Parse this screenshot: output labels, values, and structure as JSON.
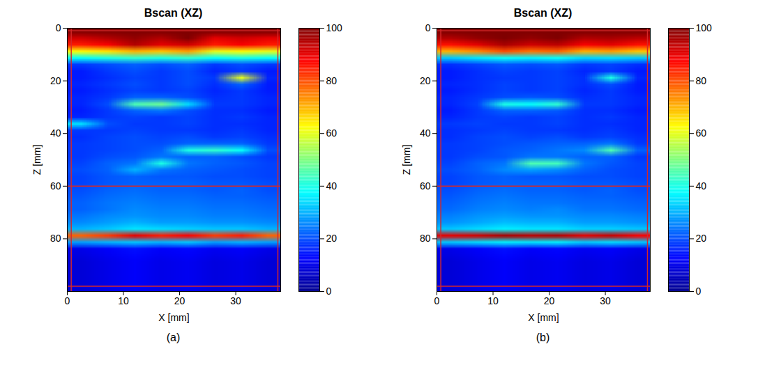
{
  "chart_data": [
    {
      "type": "heatmap",
      "title": "Bscan (XZ)",
      "caption": "(a)",
      "x_label": "X [mm]",
      "y_label": "Z [mm]",
      "xlim": [
        0,
        38
      ],
      "ylim": [
        100,
        0
      ],
      "xticks": [
        0,
        10,
        20,
        30
      ],
      "yticks": [
        0,
        20,
        40,
        60,
        80
      ],
      "color": "jet",
      "colorbar": {
        "range": [
          0,
          100
        ],
        "ticks": [
          0,
          20,
          40,
          60,
          80,
          100
        ]
      },
      "overlay_lines": {
        "x": [
          0.7,
          37.5
        ],
        "z": [
          1,
          60,
          98
        ],
        "color": "#d62728"
      },
      "cells": [
        [
          100,
          100,
          100,
          100,
          100,
          100,
          100,
          100
        ],
        [
          92,
          95,
          98,
          95,
          100,
          90,
          92,
          90
        ],
        [
          85,
          88,
          95,
          90,
          92,
          85,
          88,
          85
        ],
        [
          62,
          65,
          70,
          68,
          72,
          60,
          62,
          60
        ],
        [
          38,
          40,
          42,
          40,
          42,
          38,
          40,
          38
        ],
        [
          18,
          20,
          22,
          20,
          22,
          18,
          20,
          18
        ],
        [
          15,
          18,
          20,
          18,
          20,
          16,
          18,
          15
        ],
        [
          15,
          17,
          19,
          18,
          20,
          18,
          60,
          16
        ],
        [
          16,
          18,
          20,
          18,
          20,
          17,
          22,
          15
        ],
        [
          15,
          17,
          19,
          18,
          19,
          16,
          18,
          15
        ],
        [
          16,
          18,
          22,
          22,
          20,
          17,
          18,
          16
        ],
        [
          16,
          20,
          45,
          48,
          34,
          18,
          18,
          16
        ],
        [
          15,
          18,
          22,
          24,
          20,
          17,
          17,
          15
        ],
        [
          16,
          18,
          19,
          18,
          19,
          17,
          18,
          16
        ],
        [
          35,
          20,
          18,
          18,
          19,
          17,
          17,
          16
        ],
        [
          18,
          18,
          19,
          18,
          18,
          17,
          18,
          16
        ],
        [
          17,
          19,
          20,
          19,
          20,
          18,
          19,
          17
        ],
        [
          18,
          19,
          20,
          20,
          22,
          22,
          22,
          18
        ],
        [
          18,
          19,
          20,
          22,
          40,
          42,
          38,
          20
        ],
        [
          18,
          20,
          21,
          24,
          22,
          22,
          20,
          18
        ],
        [
          19,
          22,
          24,
          40,
          24,
          22,
          21,
          19
        ],
        [
          20,
          22,
          30,
          24,
          22,
          21,
          20,
          19
        ],
        [
          19,
          21,
          22,
          21,
          21,
          20,
          20,
          19
        ],
        [
          19,
          21,
          22,
          22,
          22,
          21,
          21,
          20
        ],
        [
          20,
          22,
          23,
          22,
          22,
          21,
          22,
          20
        ],
        [
          21,
          23,
          24,
          23,
          23,
          22,
          22,
          21
        ],
        [
          22,
          24,
          25,
          24,
          24,
          23,
          23,
          22
        ],
        [
          22,
          24,
          26,
          25,
          25,
          24,
          24,
          23
        ],
        [
          24,
          26,
          27,
          26,
          26,
          25,
          25,
          24
        ],
        [
          26,
          28,
          30,
          28,
          28,
          27,
          27,
          26
        ],
        [
          30,
          32,
          35,
          34,
          33,
          32,
          32,
          30
        ],
        [
          78,
          82,
          90,
          85,
          88,
          82,
          85,
          78
        ],
        [
          28,
          30,
          32,
          30,
          32,
          28,
          30,
          28
        ],
        [
          10,
          12,
          14,
          12,
          13,
          11,
          12,
          10
        ],
        [
          9,
          11,
          13,
          11,
          12,
          10,
          11,
          9
        ],
        [
          8,
          10,
          12,
          10,
          11,
          9,
          10,
          8
        ],
        [
          8,
          10,
          12,
          10,
          11,
          9,
          10,
          8
        ],
        [
          8,
          10,
          12,
          10,
          11,
          9,
          10,
          8
        ],
        [
          8,
          10,
          12,
          10,
          11,
          9,
          10,
          8
        ],
        [
          8,
          10,
          12,
          10,
          11,
          9,
          10,
          8
        ]
      ]
    },
    {
      "type": "heatmap",
      "title": "Bscan (XZ)",
      "caption": "(b)",
      "x_label": "X [mm]",
      "y_label": "Z [mm]",
      "xlim": [
        0,
        38
      ],
      "ylim": [
        100,
        0
      ],
      "xticks": [
        0,
        10,
        20,
        30
      ],
      "yticks": [
        0,
        20,
        40,
        60,
        80
      ],
      "color": "jet",
      "colorbar": {
        "range": [
          0,
          100
        ],
        "ticks": [
          0,
          20,
          40,
          60,
          80,
          100
        ]
      },
      "overlay_lines": {
        "x": [
          0.7,
          37.5
        ],
        "z": [
          1,
          60,
          98
        ],
        "color": "#d62728"
      },
      "cells": [
        [
          100,
          100,
          100,
          100,
          100,
          100,
          100,
          100
        ],
        [
          95,
          98,
          100,
          98,
          100,
          95,
          96,
          94
        ],
        [
          86,
          90,
          96,
          92,
          94,
          88,
          90,
          86
        ],
        [
          70,
          74,
          80,
          76,
          78,
          70,
          72,
          68
        ],
        [
          32,
          35,
          38,
          36,
          38,
          33,
          34,
          32
        ],
        [
          17,
          19,
          21,
          20,
          21,
          18,
          19,
          17
        ],
        [
          15,
          17,
          19,
          18,
          19,
          16,
          18,
          15
        ],
        [
          15,
          17,
          18,
          18,
          19,
          17,
          40,
          16
        ],
        [
          16,
          17,
          19,
          18,
          19,
          17,
          20,
          15
        ],
        [
          15,
          17,
          19,
          18,
          19,
          16,
          18,
          15
        ],
        [
          16,
          18,
          20,
          21,
          20,
          17,
          18,
          16
        ],
        [
          16,
          19,
          40,
          38,
          42,
          18,
          18,
          16
        ],
        [
          15,
          18,
          22,
          22,
          21,
          17,
          17,
          15
        ],
        [
          16,
          18,
          19,
          18,
          19,
          17,
          18,
          16
        ],
        [
          18,
          19,
          18,
          18,
          19,
          17,
          17,
          16
        ],
        [
          17,
          18,
          19,
          18,
          18,
          17,
          18,
          16
        ],
        [
          17,
          19,
          20,
          19,
          20,
          18,
          19,
          17
        ],
        [
          18,
          19,
          20,
          21,
          22,
          22,
          24,
          18
        ],
        [
          18,
          19,
          21,
          22,
          24,
          26,
          45,
          22
        ],
        [
          18,
          20,
          21,
          24,
          24,
          22,
          22,
          18
        ],
        [
          19,
          22,
          24,
          45,
          44,
          24,
          21,
          19
        ],
        [
          20,
          22,
          26,
          28,
          26,
          22,
          20,
          19
        ],
        [
          19,
          21,
          22,
          21,
          21,
          20,
          20,
          19
        ],
        [
          19,
          21,
          22,
          22,
          22,
          21,
          21,
          20
        ],
        [
          20,
          22,
          23,
          22,
          22,
          21,
          22,
          20
        ],
        [
          21,
          23,
          24,
          23,
          23,
          22,
          22,
          21
        ],
        [
          22,
          24,
          25,
          24,
          24,
          23,
          23,
          22
        ],
        [
          23,
          25,
          26,
          25,
          26,
          24,
          24,
          23
        ],
        [
          25,
          27,
          28,
          27,
          27,
          26,
          26,
          25
        ],
        [
          27,
          29,
          31,
          30,
          30,
          28,
          28,
          27
        ],
        [
          32,
          34,
          36,
          35,
          35,
          33,
          33,
          32
        ],
        [
          90,
          92,
          96,
          94,
          95,
          90,
          93,
          88
        ],
        [
          32,
          34,
          36,
          35,
          36,
          32,
          34,
          32
        ],
        [
          10,
          12,
          14,
          12,
          13,
          11,
          12,
          10
        ],
        [
          9,
          11,
          13,
          11,
          12,
          10,
          11,
          9
        ],
        [
          8,
          10,
          12,
          10,
          11,
          9,
          10,
          8
        ],
        [
          8,
          10,
          12,
          10,
          11,
          9,
          10,
          8
        ],
        [
          8,
          10,
          12,
          10,
          11,
          9,
          10,
          8
        ],
        [
          8,
          10,
          12,
          10,
          11,
          9,
          10,
          8
        ],
        [
          8,
          10,
          12,
          10,
          11,
          9,
          10,
          8
        ]
      ]
    }
  ]
}
